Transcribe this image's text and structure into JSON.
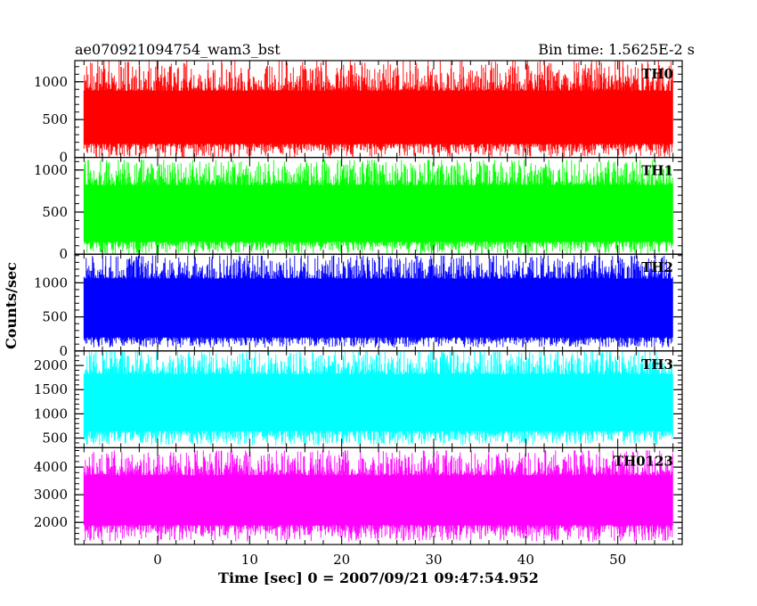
{
  "header": {
    "left": "ae070921094754_wam3_bst",
    "right": "Bin time: 1.5625E-2 s"
  },
  "chart_data": {
    "type": "line",
    "xlabel": "Time [sec] 0 = 2007/09/21 09:47:54.952",
    "ylabel": "Counts/sec",
    "xlim": [
      -9,
      57
    ],
    "x_ticks": [
      0,
      10,
      20,
      30,
      40,
      50
    ],
    "x_range_data": [
      -8,
      56
    ],
    "bin_time_s": 0.015625,
    "panels": [
      {
        "name": "TH0",
        "color": "#ff0000",
        "ylim": [
          0,
          1280
        ],
        "y_ticks": [
          0,
          500,
          1000
        ],
        "band": {
          "low": 180,
          "high": 880,
          "min": 0,
          "max": 1280
        }
      },
      {
        "name": "TH1",
        "color": "#00ff00",
        "ylim": [
          0,
          1150
        ],
        "y_ticks": [
          0,
          500,
          1000
        ],
        "band": {
          "low": 150,
          "high": 820,
          "min": 0,
          "max": 1120
        }
      },
      {
        "name": "TH2",
        "color": "#0000ff",
        "ylim": [
          0,
          1420
        ],
        "y_ticks": [
          0,
          500,
          1000
        ],
        "band": {
          "low": 200,
          "high": 1060,
          "min": 50,
          "max": 1400
        }
      },
      {
        "name": "TH3",
        "color": "#00ffff",
        "ylim": [
          300,
          2300
        ],
        "y_ticks": [
          500,
          1000,
          1500,
          2000
        ],
        "band": {
          "low": 650,
          "high": 1820,
          "min": 350,
          "max": 2300
        }
      },
      {
        "name": "TH0123",
        "color": "#ff00ff",
        "ylim": [
          1200,
          4700
        ],
        "y_ticks": [
          2000,
          3000,
          4000
        ],
        "band": {
          "low": 1900,
          "high": 3700,
          "min": 1300,
          "max": 4600
        }
      }
    ]
  }
}
